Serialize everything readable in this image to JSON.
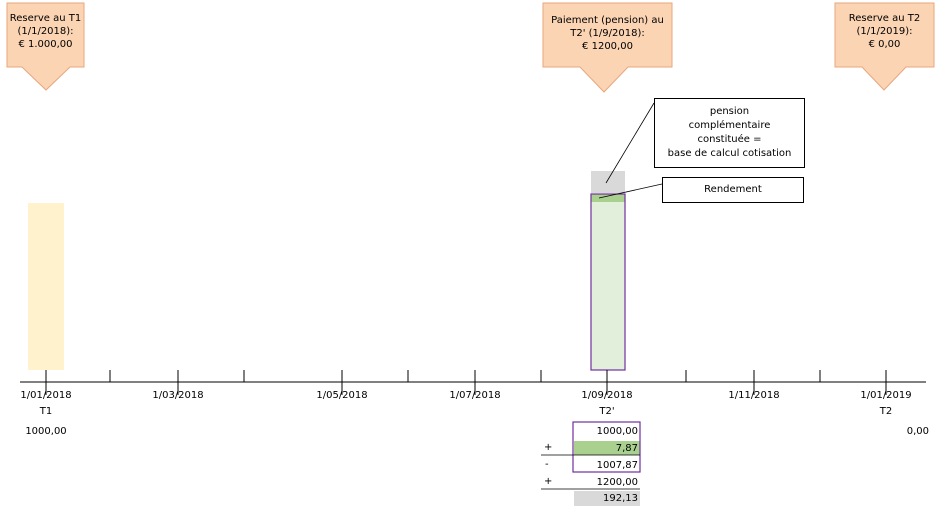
{
  "colors": {
    "callout_fill": "#fbd4b4",
    "callout_stroke": "#e8a77c",
    "t1_bar": "#fff2cc",
    "green_light": "#e2efda",
    "green_dark": "#a9d08e",
    "gray": "#d9d9d9",
    "purple": "#7030a0"
  },
  "callouts": {
    "t1": [
      "Reserve au T1",
      "(1/1/2018):",
      "€ 1.000,00"
    ],
    "t2p": [
      "Paiement (pension) au",
      "T2' (1/9/2018):",
      "€ 1200,00"
    ],
    "t2": [
      "Reserve au T2",
      "(1/1/2019):",
      "€ 0,00"
    ]
  },
  "boxes": {
    "pension": [
      "pension",
      "complémentaire",
      "constituée  =",
      "base de calcul cotisation"
    ],
    "rendement": "Rendement"
  },
  "axis": {
    "dates": [
      "1/01/2018",
      "1/03/2018",
      "1/05/2018",
      "1/07/2018",
      "1/09/2018",
      "1/11/2018",
      "1/01/2019"
    ],
    "t1_label": "T1",
    "t2p_label": "T2'",
    "t2_label": "T2",
    "t1_value": "1000,00",
    "t2_value": "0,00"
  },
  "calc": {
    "row1": "1000,00",
    "op2": "+",
    "row2": "7,87",
    "op3": "-",
    "row3": "1007,87",
    "op4": "+",
    "row4": "1200,00",
    "row5": "192,13"
  }
}
